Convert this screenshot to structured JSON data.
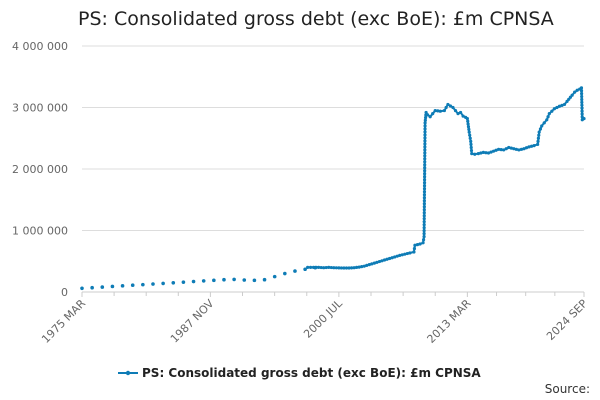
{
  "title": "PS: Consolidated gross debt (exc BoE): £m CPNSA",
  "legend": {
    "label": "PS: Consolidated gross debt (exc BoE): £m CPNSA"
  },
  "source": {
    "label": "Source:"
  },
  "colors": {
    "series": "#0e7cb6",
    "grid": "#dddddd",
    "axis": "#cccccc",
    "tick_text": "#666666"
  },
  "chart_data": {
    "type": "line",
    "title": "PS: Consolidated gross debt (exc BoE): £m CPNSA",
    "xlabel": "",
    "ylabel": "",
    "x_range": [
      1975.17,
      2024.67
    ],
    "ylim": [
      0,
      4000000
    ],
    "y_ticks": [
      {
        "value": 0,
        "label": "0"
      },
      {
        "value": 1000000,
        "label": "1 000 000"
      },
      {
        "value": 2000000,
        "label": "2 000 000"
      },
      {
        "value": 3000000,
        "label": "3 000 000"
      },
      {
        "value": 4000000,
        "label": "4 000 000"
      }
    ],
    "x_ticks": [
      {
        "value": 1975.17,
        "label": "1975 MAR"
      },
      {
        "value": 1987.83,
        "label": "1987 NOV"
      },
      {
        "value": 2000.5,
        "label": "2000 JUL"
      },
      {
        "value": 2013.17,
        "label": "2013 MAR"
      },
      {
        "value": 2024.67,
        "label": "2024 SEP"
      }
    ],
    "grid": "horizontal",
    "legend_position": "bottom",
    "series": [
      {
        "name": "PS: Consolidated gross debt (exc BoE): £m CPNSA",
        "annual_points": [
          [
            1975.17,
            60000
          ],
          [
            1976.17,
            70000
          ],
          [
            1977.17,
            80000
          ],
          [
            1978.17,
            90000
          ],
          [
            1979.17,
            100000
          ],
          [
            1980.17,
            110000
          ],
          [
            1981.17,
            120000
          ],
          [
            1982.17,
            130000
          ],
          [
            1983.17,
            140000
          ],
          [
            1984.17,
            150000
          ],
          [
            1985.17,
            160000
          ],
          [
            1986.17,
            170000
          ],
          [
            1987.17,
            180000
          ],
          [
            1988.17,
            190000
          ],
          [
            1989.17,
            200000
          ],
          [
            1990.17,
            205000
          ],
          [
            1991.17,
            195000
          ],
          [
            1992.17,
            190000
          ],
          [
            1993.17,
            200000
          ],
          [
            1994.17,
            250000
          ],
          [
            1995.17,
            300000
          ],
          [
            1996.17,
            340000
          ],
          [
            1997.17,
            370000
          ],
          [
            1998.17,
            395000
          ]
        ],
        "monthly_points": [
          [
            1997.42,
            400000
          ],
          [
            1998.0,
            400000
          ],
          [
            1998.5,
            400000
          ],
          [
            1999.0,
            395000
          ],
          [
            1999.5,
            400000
          ],
          [
            2000.0,
            395000
          ],
          [
            2000.5,
            392000
          ],
          [
            2001.0,
            390000
          ],
          [
            2001.5,
            390000
          ],
          [
            2002.0,
            395000
          ],
          [
            2002.5,
            405000
          ],
          [
            2003.0,
            420000
          ],
          [
            2003.5,
            445000
          ],
          [
            2004.0,
            470000
          ],
          [
            2004.5,
            495000
          ],
          [
            2005.0,
            520000
          ],
          [
            2005.5,
            545000
          ],
          [
            2006.0,
            570000
          ],
          [
            2006.5,
            595000
          ],
          [
            2007.0,
            615000
          ],
          [
            2007.5,
            635000
          ],
          [
            2007.9,
            650000
          ],
          [
            2008.0,
            760000
          ],
          [
            2008.5,
            780000
          ],
          [
            2008.8,
            800000
          ],
          [
            2008.9,
            900000
          ],
          [
            2009.0,
            2750000
          ],
          [
            2009.1,
            2920000
          ],
          [
            2009.25,
            2880000
          ],
          [
            2009.5,
            2850000
          ],
          [
            2009.75,
            2900000
          ],
          [
            2010.0,
            2950000
          ],
          [
            2010.5,
            2940000
          ],
          [
            2010.9,
            2950000
          ],
          [
            2011.25,
            3050000
          ],
          [
            2011.75,
            3000000
          ],
          [
            2012.0,
            2950000
          ],
          [
            2012.25,
            2900000
          ],
          [
            2012.5,
            2920000
          ],
          [
            2012.75,
            2860000
          ],
          [
            2013.0,
            2840000
          ],
          [
            2013.17,
            2820000
          ],
          [
            2013.35,
            2600000
          ],
          [
            2013.5,
            2450000
          ],
          [
            2013.6,
            2250000
          ],
          [
            2013.9,
            2240000
          ],
          [
            2014.25,
            2250000
          ],
          [
            2014.75,
            2270000
          ],
          [
            2015.25,
            2260000
          ],
          [
            2015.75,
            2290000
          ],
          [
            2016.25,
            2320000
          ],
          [
            2016.75,
            2310000
          ],
          [
            2017.25,
            2350000
          ],
          [
            2017.75,
            2330000
          ],
          [
            2018.25,
            2310000
          ],
          [
            2018.75,
            2330000
          ],
          [
            2019.25,
            2360000
          ],
          [
            2019.75,
            2380000
          ],
          [
            2020.1,
            2400000
          ],
          [
            2020.25,
            2600000
          ],
          [
            2020.5,
            2700000
          ],
          [
            2020.75,
            2750000
          ],
          [
            2021.0,
            2800000
          ],
          [
            2021.25,
            2900000
          ],
          [
            2021.75,
            2980000
          ],
          [
            2022.25,
            3020000
          ],
          [
            2022.75,
            3050000
          ],
          [
            2023.0,
            3100000
          ],
          [
            2023.5,
            3200000
          ],
          [
            2023.75,
            3250000
          ],
          [
            2024.0,
            3280000
          ],
          [
            2024.25,
            3300000
          ],
          [
            2024.42,
            3320000
          ],
          [
            2024.5,
            2800000
          ],
          [
            2024.67,
            2820000
          ]
        ]
      }
    ]
  }
}
